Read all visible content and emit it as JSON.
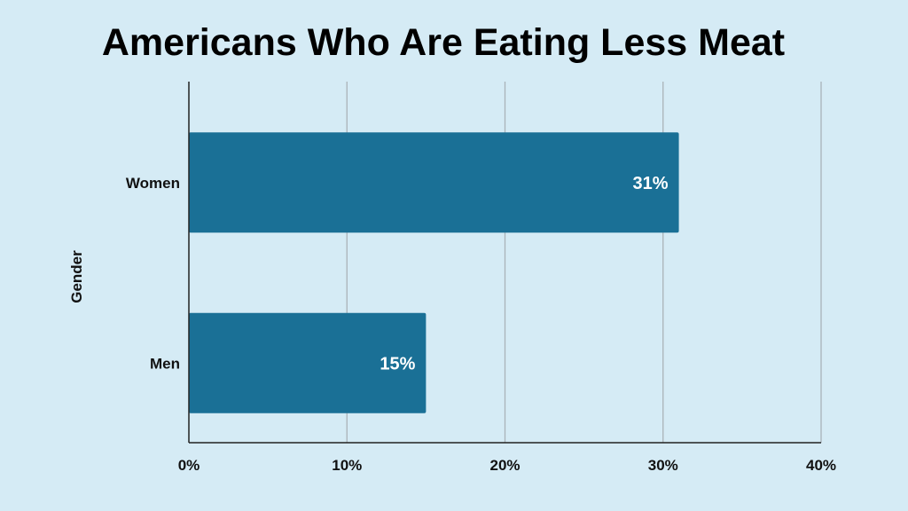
{
  "chart_data": {
    "type": "bar",
    "orientation": "horizontal",
    "title": "Americans Who Are Eating Less Meat",
    "xlabel": "",
    "ylabel": "Gender",
    "categories": [
      "Women",
      "Men"
    ],
    "values": [
      31,
      15
    ],
    "data_labels": [
      "31%",
      "15%"
    ],
    "xlim": [
      0,
      40
    ],
    "x_ticks": [
      0,
      10,
      20,
      30,
      40
    ],
    "x_tick_labels": [
      "0%",
      "10%",
      "20%",
      "30%",
      "40%"
    ],
    "grid": "vertical",
    "legend": "none",
    "colors": {
      "background": "#d5ebf5",
      "bar": "#1a7096",
      "grid": "#a9b3b8",
      "axis": "#222222",
      "text": "#111111",
      "data_label": "#ffffff"
    }
  }
}
